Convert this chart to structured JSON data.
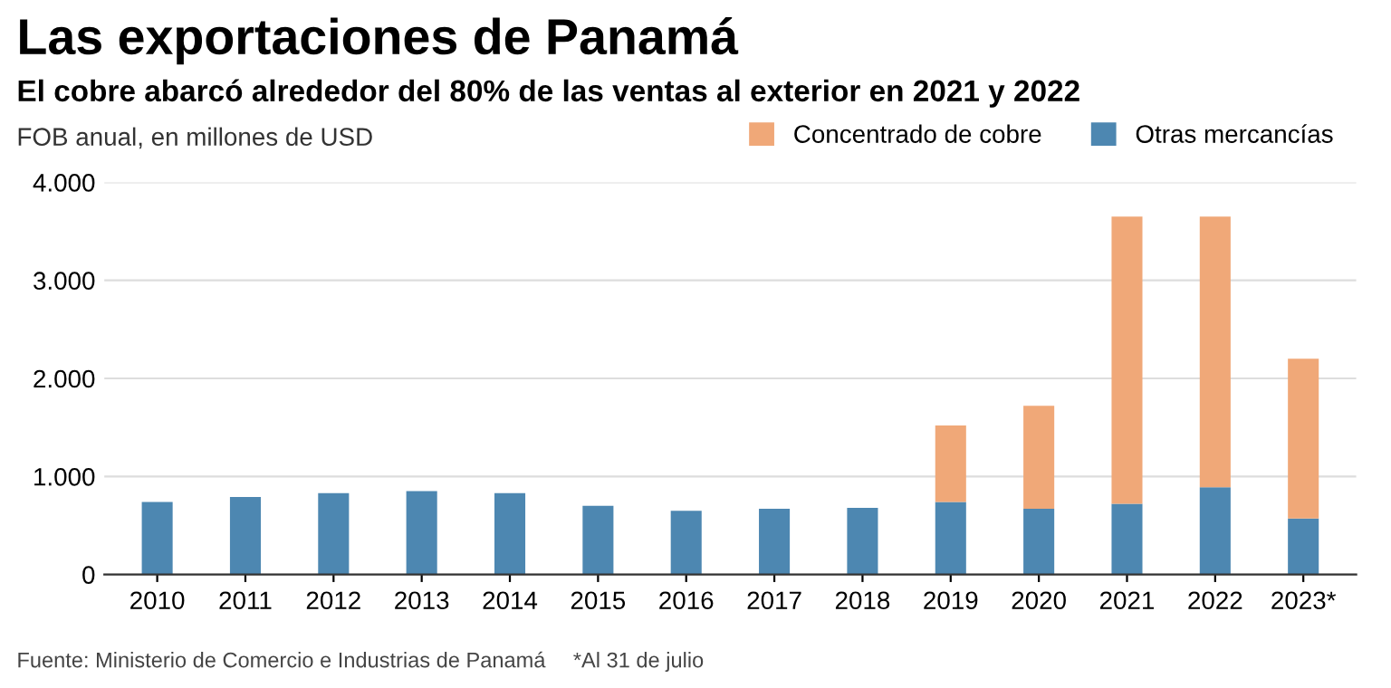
{
  "chart_data": {
    "type": "bar",
    "title": "Las exportaciones de Panamá",
    "subtitle": "El cobre abarcó alrededor del 80% de las ventas al exterior en 2021 y 2022",
    "ylabel": "FOB anual, en millones de USD",
    "categories": [
      "2010",
      "2011",
      "2012",
      "2013",
      "2014",
      "2015",
      "2016",
      "2017",
      "2018",
      "2019",
      "2020",
      "2021",
      "2022",
      "2023*"
    ],
    "stacked": true,
    "series": [
      {
        "name": "Otras mercancías",
        "color": "#4d87b1",
        "values": [
          740,
          790,
          830,
          850,
          830,
          700,
          650,
          670,
          680,
          740,
          670,
          720,
          890,
          570
        ]
      },
      {
        "name": "Concentrado de cobre",
        "color": "#f0a878",
        "values": [
          null,
          null,
          null,
          null,
          null,
          null,
          null,
          null,
          null,
          780,
          1050,
          2930,
          2760,
          1630
        ]
      }
    ],
    "ylim": [
      0,
      4000
    ],
    "yticks": [
      0,
      {
        "value": 1000,
        "label": "1.000"
      },
      {
        "value": 2000,
        "label": "2.000"
      },
      {
        "value": 3000,
        "label": "3.000"
      },
      {
        "value": 4000,
        "label": "4.000"
      }
    ],
    "grid": "y",
    "legend": "top right",
    "annotations": [
      "Fuente: Ministerio de Comercio e Industrias de Panamá",
      "*Al 31 de julio"
    ]
  }
}
